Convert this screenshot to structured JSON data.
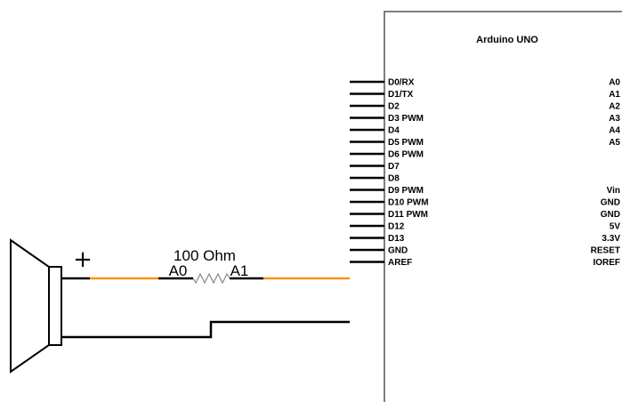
{
  "board": {
    "title": "Arduino UNO",
    "left_pins": [
      "D0/RX",
      "D1/TX",
      "D2",
      "D3 PWM",
      "D4",
      "D5 PWM",
      "D6 PWM",
      "D7",
      "D8",
      "D9 PWM",
      "D10 PWM",
      "D11 PWM",
      "D12",
      "D13",
      "GND",
      "AREF"
    ],
    "right_pins_top": [
      "A0",
      "A1",
      "A2",
      "A3",
      "A4",
      "A5"
    ],
    "right_pins_bottom": [
      "Vin",
      "GND",
      "GND",
      "5V",
      "3.3V",
      "RESET",
      "IOREF"
    ]
  },
  "resistor": {
    "value_label": "100 Ohm",
    "pin_a_label": "A0",
    "pin_b_label": "A1"
  },
  "speaker": {
    "polarity_label": "+"
  },
  "colors": {
    "wire_signal": "#f7941d",
    "wire_ground": "#000000",
    "board_border": "#555555",
    "resistor": "#888888"
  }
}
